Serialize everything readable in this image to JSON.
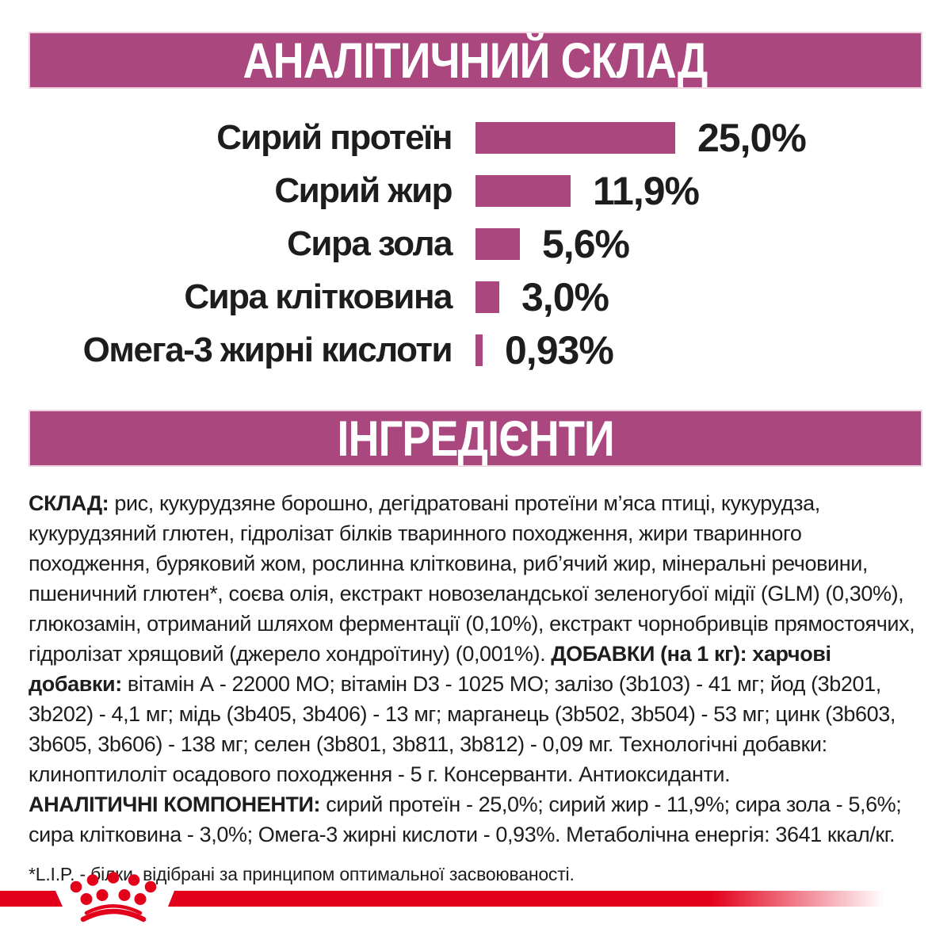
{
  "colors": {
    "accent": "#a9477e",
    "band_border": "#ecd0de",
    "brand_red": "#e3001b",
    "text": "#1d1d1b",
    "background": "#ffffff"
  },
  "analytical_section": {
    "title": "АНАЛІТИЧНИЙ СКЛАД"
  },
  "chart_data": {
    "type": "bar",
    "orientation": "horizontal",
    "title": "АНАЛІТИЧНИЙ СКЛАД",
    "categories": [
      "Сирий протеїн",
      "Сирий жир",
      "Сира зола",
      "Сира клітковина",
      "Омега-3 жирні кислоти"
    ],
    "values": [
      25.0,
      11.9,
      5.6,
      3.0,
      0.93
    ],
    "value_labels": [
      "25,0%",
      "11,9%",
      "5,6%",
      "3,0%",
      "0,93%"
    ],
    "unit": "%",
    "xlim": [
      0,
      25
    ],
    "bar_color": "#a9477e",
    "grid": false,
    "legend": false
  },
  "ingredients_section": {
    "title": "ІНГРЕДІЄНТИ",
    "paragraphs": [
      [
        {
          "text": "СКЛАД:",
          "bold": true
        },
        {
          "text": " рис, кукурудзяне борошно, дегідратовані протеїни м’яса птиці, кукурудза, кукурудзяний глютен, гідролізат білків тваринного походження, жири тваринного походження, буряковий жом, рослинна клітковина, риб’ячий жир, мінеральні речовини, пшеничний глютен*, соєва олія, екстракт новозеландської зеленогубої мідії (GLM) (0,30%), глюкозамін, отриманий шляхом ферментації (0,10%), екстракт чорнобривців прямостоячих, гідролізат хрящовий (джерело хондроїтину) (0,001%). ",
          "bold": false
        },
        {
          "text": "ДОБАВКИ (на 1 кг): харчові добавки:",
          "bold": true
        },
        {
          "text": " вітамін А - 22000 МО; вітамін D3 - 1025 МО; залізо (3b103) - 41 мг; йод (3b201, 3b202) - 4,1 мг; мідь (3b405, 3b406) - 13 мг; марганець (3b502, 3b504) - 53 мг; цинк (3b603, 3b605, 3b606) - 138 мг; селен (3b801, 3b811, 3b812) - 0,09 мг. Технологічні добавки: клиноптилоліт осадового походження - 5 г. Консерванти. Антиоксиданти.",
          "bold": false
        }
      ],
      [
        {
          "text": "АНАЛІТИЧНІ КОМПОНЕНТИ:",
          "bold": true
        },
        {
          "text": " сирий протеїн - 25,0%; сирий жир - 11,9%; сира зола - 5,6%; сира клітковина - 3,0%; Омега-3 жирні кислоти - 0,93%. Метаболічна енергія: 3641 ккал/кг.",
          "bold": false
        }
      ]
    ],
    "footnote": "*L.I.P. - білки, відібрані за принципом оптимальної засвоюваності."
  },
  "footer": {
    "logo_icon": "royal-canin-crown-logo"
  }
}
